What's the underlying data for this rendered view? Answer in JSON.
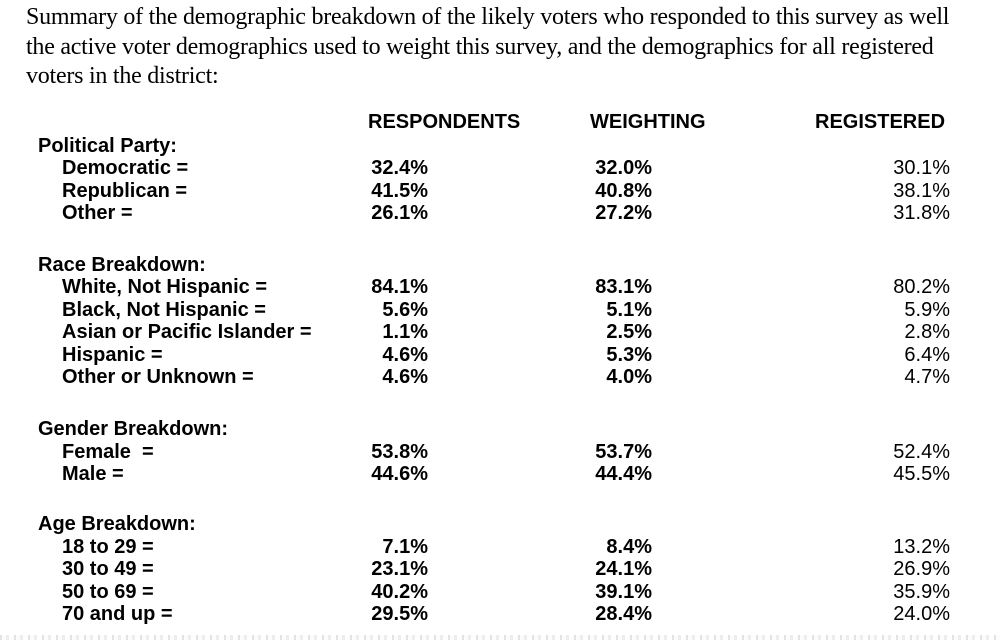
{
  "intro": {
    "lines": [
      "Summary of the demographic breakdown of the likely voters who responded to this survey as well",
      "the active voter demographics used to weight this survey, and the demographics for all registered",
      "voters in the district:"
    ]
  },
  "table": {
    "columns": {
      "respondents": "RESPONDENTS",
      "weighting": "WEIGHTING",
      "registered": "REGISTERED"
    },
    "sections": [
      {
        "title": "Political Party:",
        "rows": [
          {
            "label": "Democratic =",
            "respondents": "32.4%",
            "weighting": "32.0%",
            "registered": "30.1%"
          },
          {
            "label": "Republican =",
            "respondents": "41.5%",
            "weighting": "40.8%",
            "registered": "38.1%"
          },
          {
            "label": "Other =",
            "respondents": "26.1%",
            "weighting": "27.2%",
            "registered": "31.8%"
          }
        ]
      },
      {
        "title": "Race Breakdown:",
        "rows": [
          {
            "label": "White, Not Hispanic =",
            "respondents": "84.1%",
            "weighting": "83.1%",
            "registered": "80.2%"
          },
          {
            "label": "Black, Not Hispanic =",
            "respondents": "5.6%",
            "weighting": "5.1%",
            "registered": "5.9%"
          },
          {
            "label": "Asian or Pacific Islander =",
            "respondents": "1.1%",
            "weighting": "2.5%",
            "registered": "2.8%"
          },
          {
            "label": "Hispanic =",
            "respondents": "4.6%",
            "weighting": "5.3%",
            "registered": "6.4%"
          },
          {
            "label": "Other or Unknown =",
            "respondents": "4.6%",
            "weighting": "4.0%",
            "registered": "4.7%"
          }
        ]
      },
      {
        "title": "Gender Breakdown:",
        "rows": [
          {
            "label": "Female  =",
            "respondents": "53.8%",
            "weighting": "53.7%",
            "registered": "52.4%"
          },
          {
            "label": "Male =",
            "respondents": "44.6%",
            "weighting": "44.4%",
            "registered": "45.5%"
          }
        ]
      },
      {
        "title": "Age Breakdown:",
        "rows": [
          {
            "label": "18 to 29 =",
            "respondents": "7.1%",
            "weighting": "8.4%",
            "registered": "13.2%"
          },
          {
            "label": "30 to 49 =",
            "respondents": "23.1%",
            "weighting": "24.1%",
            "registered": "26.9%"
          },
          {
            "label": "50 to 69 =",
            "respondents": "40.2%",
            "weighting": "39.1%",
            "registered": "35.9%"
          },
          {
            "label": "70 and up =",
            "respondents": "29.5%",
            "weighting": "28.4%",
            "registered": "24.0%"
          }
        ]
      }
    ]
  }
}
